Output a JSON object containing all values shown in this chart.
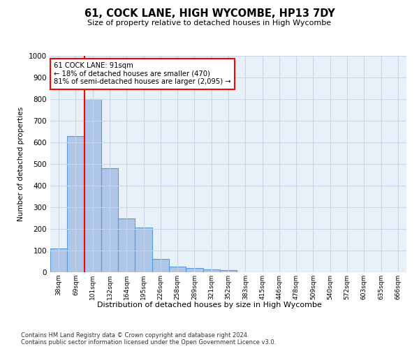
{
  "title": "61, COCK LANE, HIGH WYCOMBE, HP13 7DY",
  "subtitle": "Size of property relative to detached houses in High Wycombe",
  "xlabel": "Distribution of detached houses by size in High Wycombe",
  "ylabel": "Number of detached properties",
  "bar_color": "#aec6e8",
  "bar_edge_color": "#5b9bd5",
  "categories": [
    "38sqm",
    "69sqm",
    "101sqm",
    "132sqm",
    "164sqm",
    "195sqm",
    "226sqm",
    "258sqm",
    "289sqm",
    "321sqm",
    "352sqm",
    "383sqm",
    "415sqm",
    "446sqm",
    "478sqm",
    "509sqm",
    "540sqm",
    "572sqm",
    "603sqm",
    "635sqm",
    "666sqm"
  ],
  "values": [
    110,
    630,
    800,
    480,
    250,
    207,
    62,
    27,
    18,
    12,
    10,
    0,
    0,
    0,
    0,
    0,
    0,
    0,
    0,
    0,
    0
  ],
  "ylim": [
    0,
    1000
  ],
  "yticks": [
    0,
    100,
    200,
    300,
    400,
    500,
    600,
    700,
    800,
    900,
    1000
  ],
  "annotation_text": "61 COCK LANE: 91sqm\n← 18% of detached houses are smaller (470)\n81% of semi-detached houses are larger (2,095) →",
  "footnote": "Contains HM Land Registry data © Crown copyright and database right 2024.\nContains public sector information licensed under the Open Government Licence v3.0.",
  "bg_color": "#ffffff",
  "plot_bg_color": "#e8f0f8",
  "grid_color": "#c8d4e8"
}
